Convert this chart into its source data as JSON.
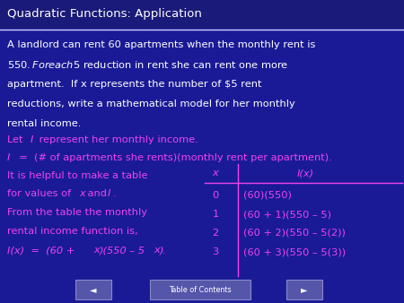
{
  "title": "Quadratic Functions: Application",
  "bg_color": "#1a1a96",
  "title_bg_color": "#1a1a7a",
  "title_color": "#ffffff",
  "header_line_color": "#ccccff",
  "magenta": "#ee44ee",
  "white": "#ffffff",
  "body_lines": [
    "A landlord can rent 60 apartments when the monthly rent is",
    "$550.  For each $5 reduction in rent she can rent one more",
    "apartment.  If x represents the number of $5 rent",
    "reductions, write a mathematical model for her monthly",
    "rental income."
  ],
  "table_rows": [
    [
      "0",
      "(60)(550)"
    ],
    [
      "1",
      "(60 + 1)(550 – 5)"
    ],
    [
      "2",
      "(60 + 2)(550 – 5(2))"
    ],
    [
      "3",
      "(60 + 3)(550 – 5(3))"
    ]
  ],
  "nav_label": "Table of Contents",
  "nav_bg": "#5555aa",
  "nav_border": "#8888cc"
}
